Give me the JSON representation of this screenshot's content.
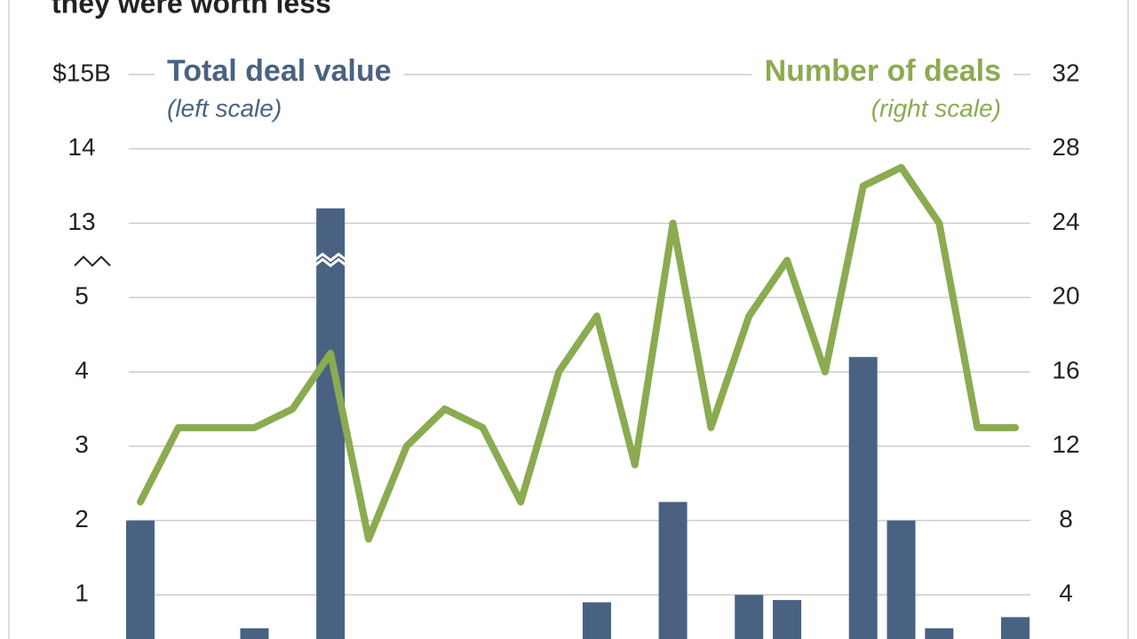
{
  "chart_data": {
    "type": "bar-line",
    "title": "they were worth less",
    "categories": [
      null,
      null,
      null,
      null,
      null,
      null,
      null,
      null,
      null,
      null,
      null,
      null,
      null,
      null,
      null,
      null,
      null,
      null,
      null,
      null,
      null,
      null,
      null,
      null
    ],
    "series": [
      {
        "name": "Total deal value",
        "note": "(left scale)",
        "type": "bar",
        "color": "#4a6282",
        "values": [
          2.0,
          0,
          0,
          0.55,
          0,
          13.2,
          0,
          0,
          0,
          0,
          0,
          0,
          0.9,
          0,
          2.25,
          0,
          1.0,
          0.93,
          0,
          4.2,
          2.0,
          0.55,
          0,
          0.7
        ]
      },
      {
        "name": "Number of deals",
        "note": "(right scale)",
        "type": "line",
        "axis": "y2",
        "color": "#8bab50",
        "values": [
          9,
          13,
          13,
          13,
          14,
          17,
          7,
          12,
          14,
          13,
          9,
          16,
          19,
          11,
          24,
          13,
          19,
          22,
          16,
          26,
          27,
          24,
          13,
          13
        ]
      }
    ],
    "ylim": [
      0,
      15
    ],
    "yticks": [
      1,
      2,
      3,
      4,
      5,
      13,
      14,
      {
        "value": 15,
        "label": "$15B"
      }
    ],
    "axis_break": [
      5.5,
      12.5
    ],
    "y2lim": [
      0,
      32
    ],
    "y2ticks": [
      4,
      8,
      12,
      16,
      20,
      24,
      28,
      32
    ],
    "grid": true
  }
}
